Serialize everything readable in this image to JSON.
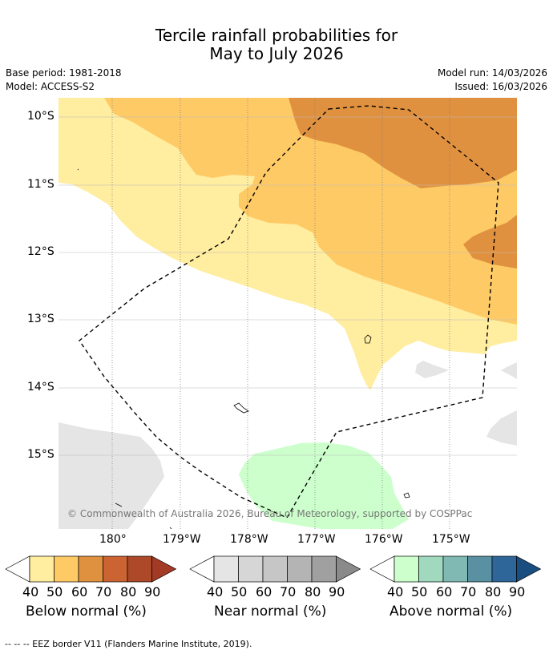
{
  "title_line1": "Tercile rainfall probabilities for",
  "title_line2": "May to July 2026",
  "base_period": "Base period: 1981-2018",
  "model": "Model: ACCESS-S2",
  "model_run": "Model run: 14/03/2026",
  "issued": "Issued: 16/03/2026",
  "latitudes": [
    "10°S",
    "11°S",
    "12°S",
    "13°S",
    "14°S",
    "15°S"
  ],
  "longitudes": [
    "180°",
    "179°W",
    "178°W",
    "177°W",
    "176°W",
    "175°W"
  ],
  "copyright": "© Commonwealth of Australia 2026, Bureau of Meteorology, supported by COSPPac",
  "legends": [
    {
      "title": "Below normal (%)",
      "ticks": [
        "40",
        "50",
        "60",
        "70",
        "80",
        "90"
      ],
      "colors": [
        "#ffeda0",
        "#feca66",
        "#e0913f",
        "#cc6333",
        "#ad4828",
        "#a33a25"
      ]
    },
    {
      "title": "Near normal (%)",
      "ticks": [
        "40",
        "50",
        "60",
        "70",
        "80",
        "90"
      ],
      "colors": [
        "#e5e5e5",
        "#d6d6d6",
        "#c6c6c6",
        "#b4b4b4",
        "#a0a0a0",
        "#8a8a8a"
      ]
    },
    {
      "title": "Above normal (%)",
      "ticks": [
        "40",
        "50",
        "60",
        "70",
        "80",
        "90"
      ],
      "colors": [
        "#ccffcc",
        "#a1d9bf",
        "#80b8b3",
        "#5991a3",
        "#2f6699",
        "#1a4d80"
      ]
    }
  ],
  "footer": "--  --  -- EEZ border V11 (Flanders Marine Institute, 2019)."
}
